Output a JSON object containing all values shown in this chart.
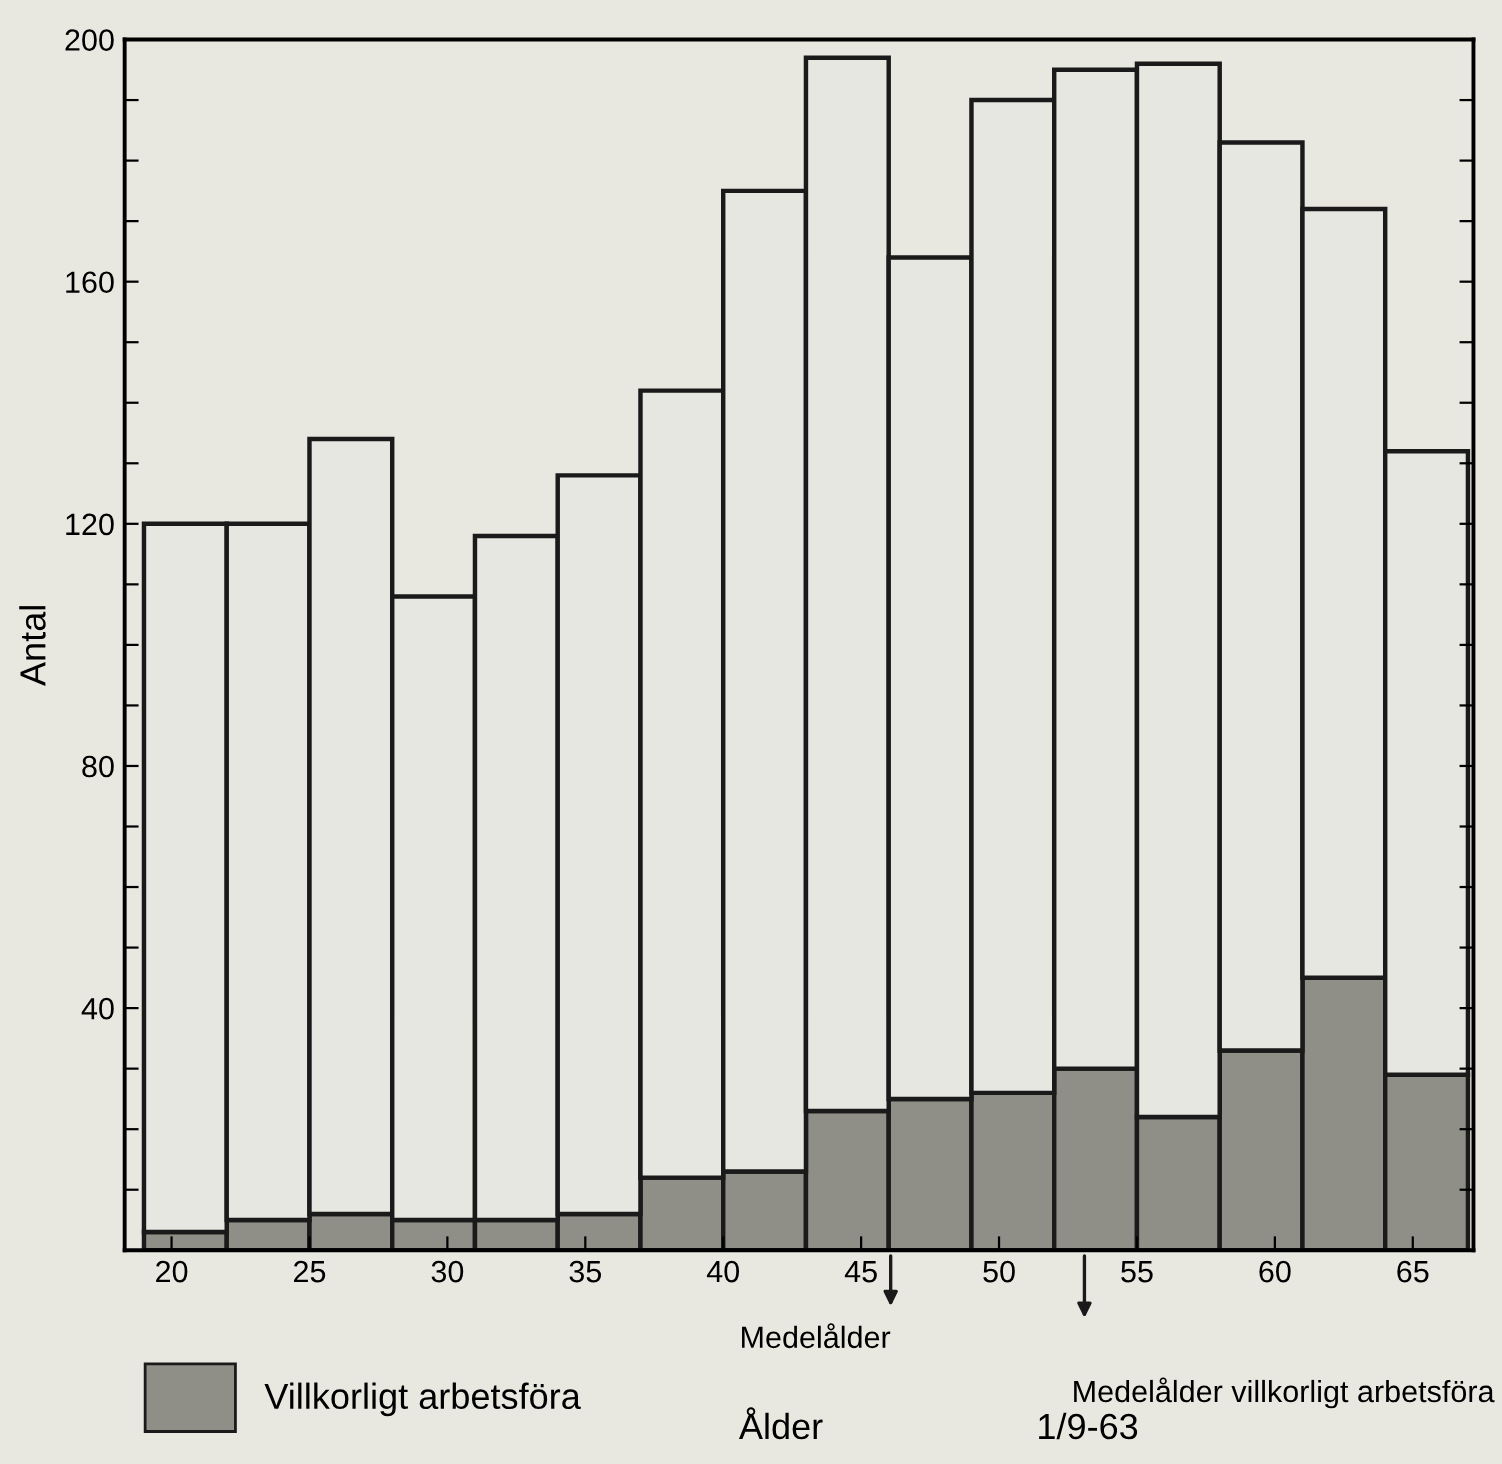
{
  "chart_data": {
    "type": "bar",
    "ylabel": "Antal",
    "xlabel": "Ålder",
    "x": [
      20.5,
      23.5,
      26.5,
      29.5,
      32.5,
      35.5,
      38.5,
      41.5,
      44.5,
      47.5,
      50.5,
      53.5,
      56.5,
      59.5,
      62.5,
      65.5
    ],
    "stacked": true,
    "series": [
      {
        "name": "Villkorligt arbetsföra",
        "color": "#8f8f88",
        "values": [
          3,
          5,
          6,
          5,
          5,
          6,
          12,
          13,
          23,
          25,
          26,
          30,
          22,
          33,
          45,
          29
        ]
      },
      {
        "color": "#e6e7e0",
        "values": [
          117,
          115,
          128,
          103,
          113,
          122,
          130,
          162,
          174,
          139,
          164,
          165,
          174,
          150,
          127,
          103
        ]
      }
    ],
    "xlim": [
      18.3,
      67.2
    ],
    "xticks": [
      20,
      25,
      30,
      35,
      40,
      45,
      50,
      55,
      60,
      65
    ],
    "ylim": [
      0,
      200
    ],
    "yticks": [
      {
        "value": 10,
        "label": null
      },
      {
        "value": 20,
        "label": null
      },
      {
        "value": 30,
        "label": null
      },
      40,
      {
        "value": 50,
        "label": null
      },
      {
        "value": 60,
        "label": null
      },
      {
        "value": 70,
        "label": null
      },
      80,
      {
        "value": 90,
        "label": null
      },
      {
        "value": 100,
        "label": null
      },
      {
        "value": 110,
        "label": null
      },
      120,
      {
        "value": 130,
        "label": null
      },
      {
        "value": 140,
        "label": null
      },
      {
        "value": 150,
        "label": null
      },
      160,
      {
        "value": 170,
        "label": null
      },
      {
        "value": 180,
        "label": null
      },
      {
        "value": 190,
        "label": null
      },
      200
    ],
    "grid": false,
    "legend": "bottom left",
    "annotations": [
      "Medelålder",
      "Medelålder villkorligt arbetsföra",
      "1/9-63"
    ]
  }
}
